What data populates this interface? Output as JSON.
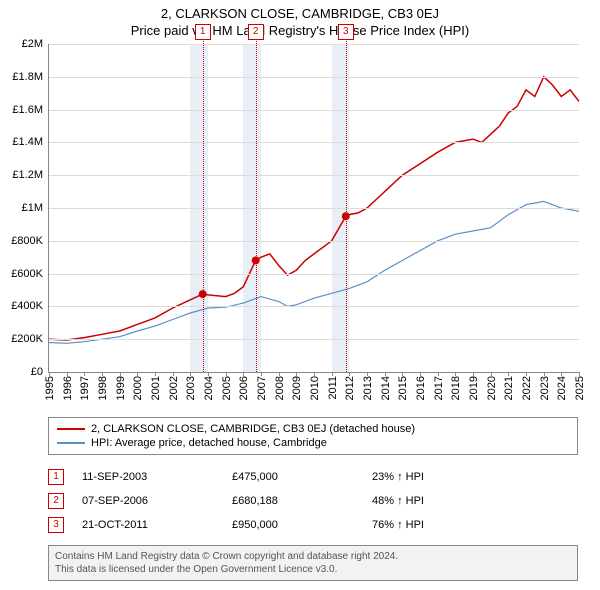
{
  "title_line1": "2, CLARKSON CLOSE, CAMBRIDGE, CB3 0EJ",
  "title_line2": "Price paid vs. HM Land Registry's House Price Index (HPI)",
  "chart": {
    "type": "line",
    "background_color": "#ffffff",
    "grid_color": "#dcdcdc",
    "axis_color": "#888888",
    "band_color": "#e8eef6",
    "ylim": [
      0,
      2000000
    ],
    "ytick_step": 200000,
    "yticks": [
      "£0",
      "£200K",
      "£400K",
      "£600K",
      "£800K",
      "£1M",
      "£1.2M",
      "£1.4M",
      "£1.6M",
      "£1.8M",
      "£2M"
    ],
    "xlim": [
      1995,
      2025
    ],
    "xticks": [
      1995,
      1996,
      1997,
      1998,
      1999,
      2000,
      2001,
      2002,
      2003,
      2004,
      2005,
      2006,
      2007,
      2008,
      2009,
      2010,
      2011,
      2012,
      2013,
      2014,
      2015,
      2016,
      2017,
      2018,
      2019,
      2020,
      2021,
      2022,
      2023,
      2024,
      2025
    ],
    "bands": [
      [
        2003,
        2004
      ],
      [
        2006,
        2007
      ],
      [
        2011,
        2012
      ]
    ],
    "sale_markers": [
      {
        "num": "1",
        "year": 2003.7,
        "price": 475000,
        "color": "#cc0000"
      },
      {
        "num": "2",
        "year": 2006.7,
        "price": 680188,
        "color": "#cc0000"
      },
      {
        "num": "3",
        "year": 2011.8,
        "price": 950000,
        "color": "#cc0000"
      }
    ],
    "series": [
      {
        "name": "property",
        "label": "2, CLARKSON CLOSE, CAMBRIDGE, CB3 0EJ (detached house)",
        "color": "#cc0000",
        "line_width": 1.5,
        "points": [
          [
            1995,
            200000
          ],
          [
            1996,
            195000
          ],
          [
            1997,
            210000
          ],
          [
            1998,
            230000
          ],
          [
            1999,
            250000
          ],
          [
            2000,
            290000
          ],
          [
            2001,
            330000
          ],
          [
            2002,
            390000
          ],
          [
            2003,
            440000
          ],
          [
            2003.7,
            475000
          ],
          [
            2004,
            470000
          ],
          [
            2005,
            460000
          ],
          [
            2005.5,
            480000
          ],
          [
            2006,
            520000
          ],
          [
            2006.7,
            680188
          ],
          [
            2007,
            700000
          ],
          [
            2007.5,
            720000
          ],
          [
            2008,
            650000
          ],
          [
            2008.5,
            590000
          ],
          [
            2009,
            620000
          ],
          [
            2009.5,
            680000
          ],
          [
            2010,
            720000
          ],
          [
            2010.5,
            760000
          ],
          [
            2011,
            800000
          ],
          [
            2011.8,
            950000
          ],
          [
            2012,
            960000
          ],
          [
            2012.5,
            970000
          ],
          [
            2013,
            1000000
          ],
          [
            2014,
            1100000
          ],
          [
            2015,
            1200000
          ],
          [
            2016,
            1270000
          ],
          [
            2017,
            1340000
          ],
          [
            2018,
            1400000
          ],
          [
            2019,
            1420000
          ],
          [
            2019.5,
            1400000
          ],
          [
            2020,
            1450000
          ],
          [
            2020.5,
            1500000
          ],
          [
            2021,
            1580000
          ],
          [
            2021.5,
            1620000
          ],
          [
            2022,
            1720000
          ],
          [
            2022.5,
            1680000
          ],
          [
            2023,
            1800000
          ],
          [
            2023.5,
            1750000
          ],
          [
            2024,
            1680000
          ],
          [
            2024.5,
            1720000
          ],
          [
            2025,
            1650000
          ]
        ]
      },
      {
        "name": "hpi",
        "label": "HPI: Average price, detached house, Cambridge",
        "color": "#5b8fc7",
        "line_width": 1.2,
        "points": [
          [
            1995,
            180000
          ],
          [
            1996,
            175000
          ],
          [
            1997,
            185000
          ],
          [
            1998,
            200000
          ],
          [
            1999,
            215000
          ],
          [
            2000,
            250000
          ],
          [
            2001,
            280000
          ],
          [
            2002,
            320000
          ],
          [
            2003,
            360000
          ],
          [
            2004,
            390000
          ],
          [
            2005,
            395000
          ],
          [
            2006,
            420000
          ],
          [
            2007,
            460000
          ],
          [
            2008,
            430000
          ],
          [
            2008.5,
            400000
          ],
          [
            2009,
            410000
          ],
          [
            2010,
            450000
          ],
          [
            2011,
            480000
          ],
          [
            2012,
            510000
          ],
          [
            2013,
            550000
          ],
          [
            2014,
            620000
          ],
          [
            2015,
            680000
          ],
          [
            2016,
            740000
          ],
          [
            2017,
            800000
          ],
          [
            2018,
            840000
          ],
          [
            2019,
            860000
          ],
          [
            2020,
            880000
          ],
          [
            2021,
            960000
          ],
          [
            2022,
            1020000
          ],
          [
            2023,
            1040000
          ],
          [
            2024,
            1000000
          ],
          [
            2025,
            980000
          ]
        ]
      }
    ]
  },
  "legend": [
    {
      "color": "#cc0000",
      "label": "2, CLARKSON CLOSE, CAMBRIDGE, CB3 0EJ (detached house)"
    },
    {
      "color": "#5b8fc7",
      "label": "HPI: Average price, detached house, Cambridge"
    }
  ],
  "sales": [
    {
      "num": "1",
      "color": "#cc0000",
      "date": "11-SEP-2003",
      "price": "£475,000",
      "diff": "23% ↑ HPI"
    },
    {
      "num": "2",
      "color": "#cc0000",
      "date": "07-SEP-2006",
      "price": "£680,188",
      "diff": "48% ↑ HPI"
    },
    {
      "num": "3",
      "color": "#cc0000",
      "date": "21-OCT-2011",
      "price": "£950,000",
      "diff": "76% ↑ HPI"
    }
  ],
  "credits_line1": "Contains HM Land Registry data © Crown copyright and database right 2024.",
  "credits_line2": "This data is licensed under the Open Government Licence v3.0."
}
